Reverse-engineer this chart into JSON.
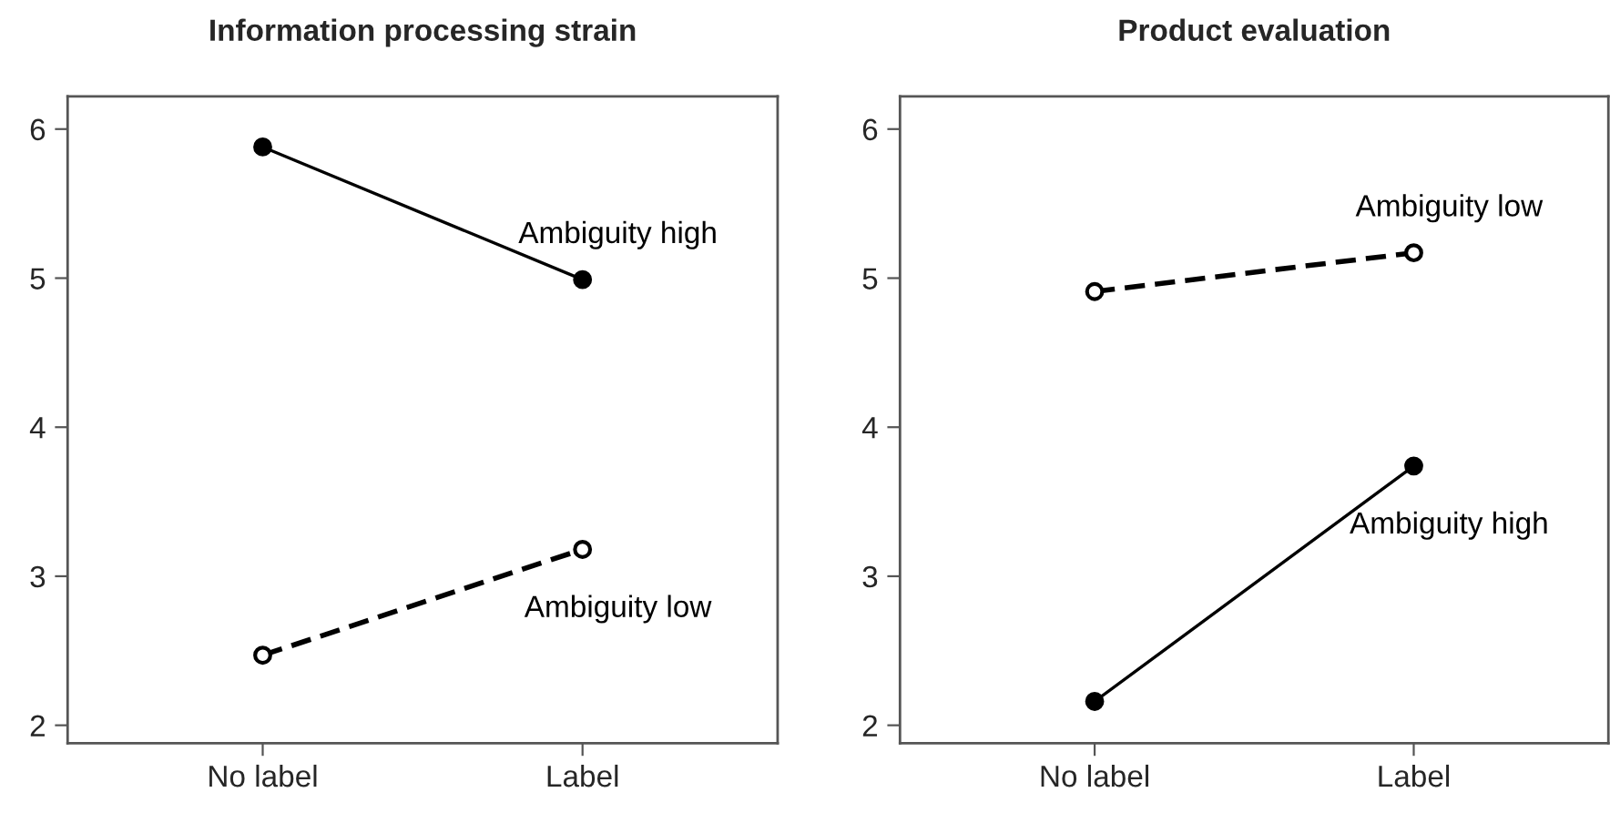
{
  "chart_data": [
    {
      "type": "line",
      "title": "Information processing strain",
      "categories": [
        "No label",
        "Label"
      ],
      "ylim": [
        1.88,
        6.22
      ],
      "yticks": [
        2,
        3,
        4,
        5,
        6
      ],
      "grid": false,
      "legend": false,
      "series": [
        {
          "name": "Ambiguity high",
          "color": "#000000",
          "values": [
            5.88,
            4.99
          ],
          "line_style": "solid",
          "marker": "circle"
        },
        {
          "name": "Ambiguity low",
          "color": "#000000",
          "values": [
            2.47,
            3.18
          ],
          "line_style": "dashed",
          "marker": "circle"
        }
      ]
    },
    {
      "type": "line",
      "title": "Product evaluation",
      "categories": [
        "No label",
        "Label"
      ],
      "ylim": [
        1.88,
        6.22
      ],
      "yticks": [
        2,
        3,
        4,
        5,
        6
      ],
      "grid": false,
      "legend": false,
      "series": [
        {
          "name": "Ambiguity high",
          "color": "#000000",
          "values": [
            2.16,
            3.74
          ],
          "line_style": "solid",
          "marker": "circle"
        },
        {
          "name": "Ambiguity low",
          "color": "#000000",
          "values": [
            4.91,
            5.17
          ],
          "line_style": "dashed",
          "marker": "circle"
        }
      ]
    }
  ]
}
